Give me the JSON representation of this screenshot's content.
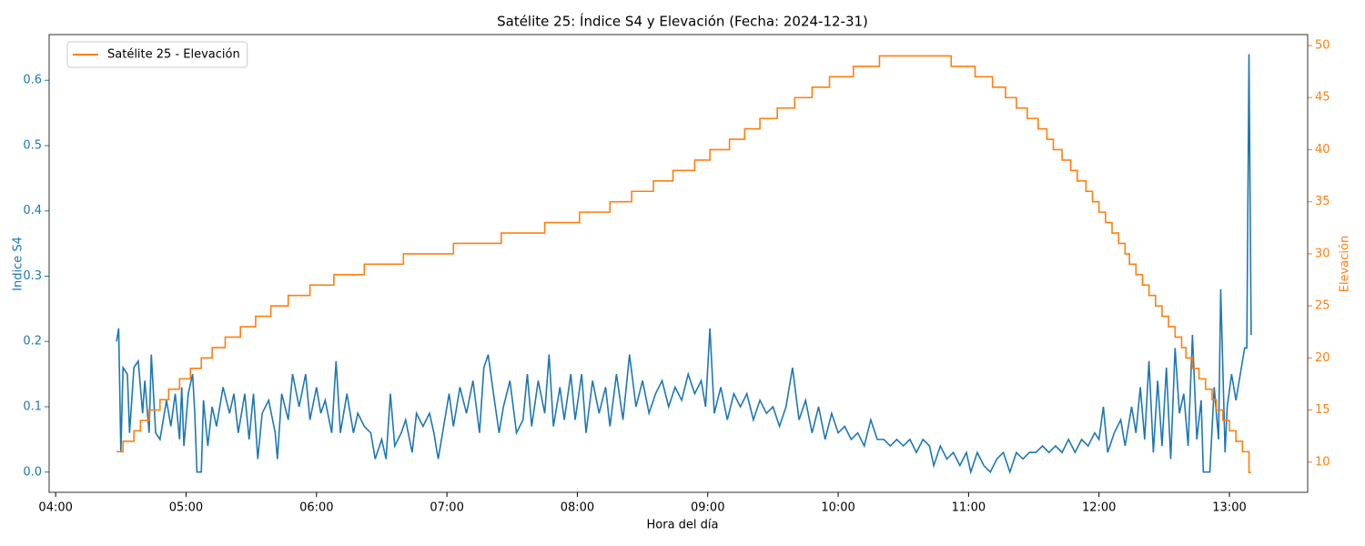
{
  "chart_data": {
    "type": "line",
    "title": "Satélite 25: Índice S4 y Elevación (Fecha: 2024-12-31)",
    "xlabel": "Hora del día",
    "ylabel": "Indice S4",
    "y2label": "Elevación",
    "xlim": [
      "03:57",
      "13:36"
    ],
    "xticks": [
      "04:00",
      "05:00",
      "06:00",
      "07:00",
      "08:00",
      "09:00",
      "10:00",
      "11:00",
      "12:00",
      "13:00"
    ],
    "ylim": [
      -0.031,
      0.67
    ],
    "yticks": [
      {
        "value": 0,
        "label": "0.0"
      },
      0.1,
      0.2,
      0.3,
      0.4,
      0.5,
      0.6
    ],
    "y2lim": [
      7.1,
      51.05
    ],
    "y2ticks": [
      10,
      15,
      20,
      25,
      30,
      35,
      40,
      45,
      50
    ],
    "legend": "upper left",
    "series": [
      {
        "color": "#1f77b4",
        "axis": "y",
        "step": false,
        "x": [
          "04:28",
          "04:29",
          "04:30",
          "04:31",
          "04:33",
          "04:34",
          "04:36",
          "04:38",
          "04:40",
          "04:41",
          "04:43",
          "04:44",
          "04:46",
          "04:48",
          "04:51",
          "04:53",
          "04:55",
          "04:57",
          "04:58",
          "04:59",
          "05:01",
          "05:03",
          "05:04",
          "05:05",
          "05:07",
          "05:08",
          "05:10",
          "05:12",
          "05:14",
          "05:17",
          "05:20",
          "05:22",
          "05:24",
          "05:27",
          "05:29",
          "05:31",
          "05:33",
          "05:35",
          "05:38",
          "05:41",
          "05:42",
          "05:44",
          "05:47",
          "05:49",
          "05:52",
          "05:55",
          "05:57",
          "06:00",
          "06:02",
          "06:04",
          "06:07",
          "06:09",
          "06:11",
          "06:14",
          "06:17",
          "06:19",
          "06:22",
          "06:25",
          "06:27",
          "06:30",
          "06:32",
          "06:34",
          "06:36",
          "06:39",
          "06:41",
          "06:44",
          "06:46",
          "06:49",
          "06:52",
          "06:54",
          "06:56",
          "06:59",
          "07:01",
          "07:03",
          "07:06",
          "07:09",
          "07:12",
          "07:15",
          "07:17",
          "07:19",
          "07:21",
          "07:24",
          "07:26",
          "07:29",
          "07:32",
          "07:35",
          "07:37",
          "07:39",
          "07:42",
          "07:45",
          "07:47",
          "07:49",
          "07:52",
          "07:54",
          "07:57",
          "07:59",
          "08:02",
          "08:04",
          "08:07",
          "08:10",
          "08:13",
          "08:15",
          "08:18",
          "08:21",
          "08:24",
          "08:27",
          "08:30",
          "08:33",
          "08:36",
          "08:39",
          "08:42",
          "08:45",
          "08:48",
          "08:51",
          "08:54",
          "08:57",
          "08:59",
          "09:01",
          "09:03",
          "09:06",
          "09:09",
          "09:12",
          "09:15",
          "09:18",
          "09:21",
          "09:24",
          "09:27",
          "09:30",
          "09:33",
          "09:36",
          "09:39",
          "09:42",
          "09:45",
          "09:48",
          "09:51",
          "09:54",
          "09:57",
          "10:00",
          "10:03",
          "10:06",
          "10:09",
          "10:12",
          "10:15",
          "10:18",
          "10:21",
          "10:24",
          "10:27",
          "10:30",
          "10:33",
          "10:36",
          "10:39",
          "10:42",
          "10:44",
          "10:47",
          "10:50",
          "10:53",
          "10:56",
          "10:59",
          "11:01",
          "11:04",
          "11:07",
          "11:10",
          "11:13",
          "11:16",
          "11:19",
          "11:22",
          "11:25",
          "11:28",
          "11:31",
          "11:34",
          "11:37",
          "11:40",
          "11:43",
          "11:46",
          "11:49",
          "11:52",
          "11:55",
          "11:58",
          "12:00",
          "12:02",
          "12:04",
          "12:07",
          "12:10",
          "12:12",
          "12:15",
          "12:17",
          "12:19",
          "12:21",
          "12:23",
          "12:25",
          "12:27",
          "12:29",
          "12:31",
          "12:33",
          "12:35",
          "12:37",
          "12:39",
          "12:41",
          "12:43",
          "12:45",
          "12:47",
          "12:48",
          "12:51",
          "12:53",
          "12:55",
          "12:56",
          "12:58",
          "12:59",
          "13:01",
          "13:03",
          "13:05",
          "13:07",
          "13:08",
          "13:09",
          "13:10"
        ],
        "values": [
          0.2,
          0.22,
          0.03,
          0.16,
          0.15,
          0.06,
          0.16,
          0.17,
          0.09,
          0.14,
          0.06,
          0.18,
          0.06,
          0.05,
          0.11,
          0.07,
          0.12,
          0.05,
          0.13,
          0.04,
          0.12,
          0.15,
          0.09,
          0,
          0,
          0.11,
          0.04,
          0.1,
          0.07,
          0.13,
          0.09,
          0.12,
          0.06,
          0.12,
          0.05,
          0.12,
          0.02,
          0.09,
          0.11,
          0.06,
          0.02,
          0.12,
          0.08,
          0.15,
          0.1,
          0.15,
          0.08,
          0.13,
          0.09,
          0.11,
          0.06,
          0.17,
          0.06,
          0.12,
          0.06,
          0.09,
          0.07,
          0.06,
          0.02,
          0.05,
          0.02,
          0.12,
          0.04,
          0.06,
          0.08,
          0.03,
          0.09,
          0.07,
          0.09,
          0.06,
          0.02,
          0.08,
          0.12,
          0.07,
          0.13,
          0.09,
          0.14,
          0.06,
          0.16,
          0.18,
          0.13,
          0.06,
          0.1,
          0.14,
          0.06,
          0.08,
          0.15,
          0.07,
          0.14,
          0.09,
          0.18,
          0.07,
          0.13,
          0.08,
          0.15,
          0.08,
          0.15,
          0.06,
          0.14,
          0.09,
          0.13,
          0.07,
          0.15,
          0.08,
          0.18,
          0.1,
          0.14,
          0.09,
          0.12,
          0.14,
          0.1,
          0.13,
          0.11,
          0.15,
          0.12,
          0.14,
          0.1,
          0.22,
          0.09,
          0.13,
          0.08,
          0.12,
          0.1,
          0.12,
          0.08,
          0.11,
          0.09,
          0.1,
          0.07,
          0.1,
          0.16,
          0.08,
          0.11,
          0.06,
          0.1,
          0.05,
          0.09,
          0.06,
          0.07,
          0.05,
          0.06,
          0.04,
          0.08,
          0.05,
          0.05,
          0.04,
          0.05,
          0.04,
          0.05,
          0.03,
          0.05,
          0.04,
          0.01,
          0.04,
          0.02,
          0.03,
          0.01,
          0.03,
          0,
          0.03,
          0.01,
          0,
          0.02,
          0.03,
          0,
          0.03,
          0.02,
          0.03,
          0.03,
          0.04,
          0.03,
          0.04,
          0.03,
          0.05,
          0.03,
          0.05,
          0.04,
          0.06,
          0.05,
          0.1,
          0.03,
          0.06,
          0.08,
          0.04,
          0.1,
          0.06,
          0.13,
          0.05,
          0.17,
          0.03,
          0.14,
          0.04,
          0.16,
          0.02,
          0.19,
          0.09,
          0.12,
          0.04,
          0.21,
          0.05,
          0.11,
          0,
          0,
          0.13,
          0.05,
          0.28,
          0.03,
          0.1,
          0.15,
          0.11,
          0.15,
          0.19,
          0.19,
          0.64,
          0.21
        ]
      },
      {
        "name": "Satélite 25 - Elevación",
        "color": "#ff7f0e",
        "axis": "y2",
        "step": true,
        "x": [
          "04:28",
          "04:31",
          "04:36",
          "04:39",
          "04:43",
          "04:48",
          "04:52",
          "04:57",
          "05:02",
          "05:07",
          "05:12",
          "05:18",
          "05:25",
          "05:32",
          "05:39",
          "05:47",
          "05:57",
          "06:08",
          "06:22",
          "06:40",
          "07:03",
          "07:25",
          "07:45",
          "08:01",
          "08:15",
          "08:25",
          "08:35",
          "08:44",
          "08:54",
          "09:01",
          "09:10",
          "09:17",
          "09:24",
          "09:32",
          "09:40",
          "09:48",
          "09:56",
          "10:07",
          "10:19",
          "10:52",
          "11:03",
          "11:11",
          "11:17",
          "11:22",
          "11:27",
          "11:32",
          "11:36",
          "11:39",
          "11:43",
          "11:47",
          "11:50",
          "11:54",
          "11:57",
          "12:00",
          "12:03",
          "12:06",
          "12:09",
          "12:12",
          "12:14",
          "12:17",
          "12:20",
          "12:23",
          "12:26",
          "12:29",
          "12:32",
          "12:35",
          "12:38",
          "12:40",
          "12:43",
          "12:46",
          "12:49",
          "12:52",
          "12:54",
          "12:57",
          "13:00",
          "13:03",
          "13:06",
          "13:09",
          "13:10"
        ],
        "values": [
          11,
          12,
          13,
          14,
          15,
          16,
          17,
          18,
          19,
          20,
          21,
          22,
          23,
          24,
          25,
          26,
          27,
          28,
          29,
          30,
          31,
          32,
          33,
          34,
          35,
          36,
          37,
          38,
          39,
          40,
          41,
          42,
          43,
          44,
          45,
          46,
          47,
          48,
          49,
          48,
          47,
          46,
          45,
          44,
          43,
          42,
          41,
          40,
          39,
          38,
          37,
          36,
          35,
          34,
          33,
          32,
          31,
          30,
          29,
          28,
          27,
          26,
          25,
          24,
          23,
          22,
          21,
          20,
          19,
          18,
          17,
          16,
          15,
          14,
          13,
          12,
          11,
          9,
          9
        ]
      }
    ]
  }
}
